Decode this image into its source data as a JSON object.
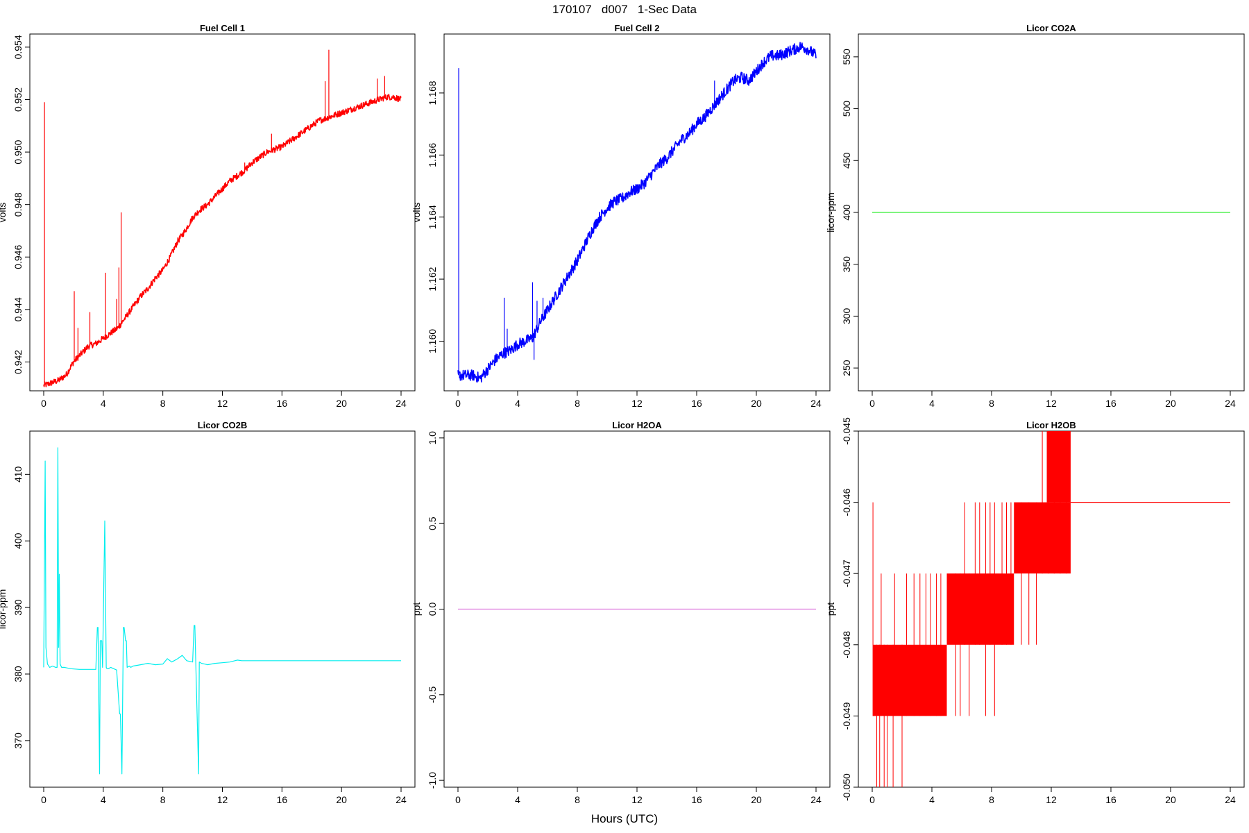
{
  "page_title": "170107   d007   1-Sec Data",
  "x_axis_label": "Hours (UTC)",
  "chart_data": [
    {
      "type": "line",
      "title": "Fuel Cell 1",
      "ylabel": "volts",
      "xlabel": "",
      "color": "#ff0000",
      "xlim": [
        0,
        24
      ],
      "ylim": [
        0.9409,
        0.9545
      ],
      "x_ticks": [
        "0",
        "4",
        "8",
        "12",
        "16",
        "20",
        "24"
      ],
      "y_ticks": [
        "0.942",
        "0.944",
        "0.946",
        "0.948",
        "0.950",
        "0.952",
        "0.954"
      ],
      "y_tick_values": [
        0.942,
        0.944,
        0.946,
        0.948,
        0.95,
        0.952,
        0.954
      ],
      "noise": 0.00012,
      "series": [
        {
          "x": [
            0,
            0.5,
            1.0,
            1.5,
            2.0,
            2.5,
            3.0,
            3.5,
            4.0,
            4.5,
            5.0,
            5.5,
            6.0,
            6.5,
            7.0,
            7.5,
            8.0,
            8.5,
            9.0,
            9.5,
            10.0,
            10.5,
            11.0,
            11.5,
            12.0,
            12.5,
            13.0,
            13.5,
            14.0,
            14.5,
            15.0,
            15.5,
            16.0,
            16.5,
            17.0,
            17.5,
            18.0,
            18.5,
            19.0,
            19.5,
            20.0,
            20.5,
            21.0,
            21.5,
            22.0,
            22.5,
            23.0,
            23.5,
            24.0
          ],
          "values": [
            0.9411,
            0.9412,
            0.9413,
            0.9415,
            0.942,
            0.9423,
            0.9426,
            0.9427,
            0.9429,
            0.9431,
            0.9433,
            0.9437,
            0.9441,
            0.9445,
            0.9448,
            0.9452,
            0.9455,
            0.946,
            0.9466,
            0.947,
            0.9475,
            0.9478,
            0.948,
            0.9483,
            0.9486,
            0.9489,
            0.9491,
            0.9493,
            0.9496,
            0.9498,
            0.95,
            0.9501,
            0.9502,
            0.9504,
            0.9506,
            0.9508,
            0.951,
            0.9512,
            0.9513,
            0.9514,
            0.9515,
            0.9516,
            0.9517,
            0.9518,
            0.9519,
            0.952,
            0.9521,
            0.9521,
            0.952
          ]
        }
      ],
      "spikes": [
        [
          0.05,
          0.9519
        ],
        [
          2.05,
          0.9447
        ],
        [
          2.3,
          0.9433
        ],
        [
          3.1,
          0.9439
        ],
        [
          4.15,
          0.9454
        ],
        [
          4.9,
          0.9444
        ],
        [
          5.05,
          0.9456
        ],
        [
          5.2,
          0.9477
        ],
        [
          13.5,
          0.9496
        ],
        [
          15.3,
          0.9507
        ],
        [
          19.15,
          0.9539
        ],
        [
          18.9,
          0.9527
        ],
        [
          22.4,
          0.9528
        ],
        [
          22.9,
          0.9529
        ]
      ]
    },
    {
      "type": "line",
      "title": "Fuel Cell 2",
      "ylabel": "volts",
      "xlabel": "",
      "color": "#0000ff",
      "xlim": [
        0,
        24
      ],
      "ylim": [
        1.1584,
        1.1699
      ],
      "x_ticks": [
        "0",
        "4",
        "8",
        "12",
        "16",
        "20",
        "24"
      ],
      "y_ticks": [
        "1.160",
        "1.162",
        "1.164",
        "1.166",
        "1.168"
      ],
      "y_tick_values": [
        1.16,
        1.162,
        1.164,
        1.166,
        1.168
      ],
      "noise": 0.00018,
      "series": [
        {
          "x": [
            0,
            0.5,
            1.0,
            1.5,
            2.0,
            2.5,
            3.0,
            3.5,
            4.0,
            4.5,
            5.0,
            5.5,
            6.0,
            6.5,
            7.0,
            7.5,
            8.0,
            8.5,
            9.0,
            9.5,
            10.0,
            10.5,
            11.0,
            11.5,
            12.0,
            12.5,
            13.0,
            13.5,
            14.0,
            14.5,
            15.0,
            15.5,
            16.0,
            16.5,
            17.0,
            17.5,
            18.0,
            18.5,
            19.0,
            19.5,
            20.0,
            20.5,
            21.0,
            21.5,
            22.0,
            22.5,
            23.0,
            23.5,
            24.0
          ],
          "values": [
            1.1589,
            1.1589,
            1.1589,
            1.1588,
            1.1591,
            1.1594,
            1.1596,
            1.1597,
            1.1599,
            1.16,
            1.1601,
            1.1606,
            1.161,
            1.1614,
            1.1618,
            1.1622,
            1.1626,
            1.1631,
            1.1636,
            1.164,
            1.1643,
            1.1645,
            1.1646,
            1.1648,
            1.1649,
            1.1651,
            1.1654,
            1.1657,
            1.1659,
            1.1662,
            1.1665,
            1.1667,
            1.167,
            1.1672,
            1.1675,
            1.1678,
            1.1681,
            1.1684,
            1.1685,
            1.1684,
            1.1687,
            1.169,
            1.1692,
            1.1692,
            1.1693,
            1.1694,
            1.1695,
            1.1694,
            1.1692
          ]
        }
      ],
      "spikes": [
        [
          0.05,
          1.1688
        ],
        [
          0.1,
          1.1588
        ],
        [
          3.1,
          1.1614
        ],
        [
          3.3,
          1.1604
        ],
        [
          5.0,
          1.1619
        ],
        [
          5.1,
          1.1594
        ],
        [
          5.3,
          1.1613
        ],
        [
          5.7,
          1.1614
        ],
        [
          17.2,
          1.1684
        ]
      ]
    },
    {
      "type": "line",
      "title": "Licor CO2A",
      "ylabel": "licor-ppm",
      "xlabel": "",
      "color": "#33ee33",
      "xlim": [
        0,
        24
      ],
      "ylim": [
        228,
        572
      ],
      "x_ticks": [
        "0",
        "4",
        "8",
        "12",
        "16",
        "20",
        "24"
      ],
      "y_ticks": [
        "250",
        "300",
        "350",
        "400",
        "450",
        "500",
        "550"
      ],
      "y_tick_values": [
        250,
        300,
        350,
        400,
        450,
        500,
        550
      ],
      "noise": 0,
      "series": [
        {
          "x": [
            0,
            24
          ],
          "values": [
            400,
            400
          ]
        }
      ],
      "spikes": []
    },
    {
      "type": "line",
      "title": "Licor CO2B",
      "ylabel": "licor-ppm",
      "xlabel": "",
      "color": "#00eeee",
      "xlim": [
        0,
        24
      ],
      "ylim": [
        363,
        416.5
      ],
      "x_ticks": [
        "0",
        "4",
        "8",
        "12",
        "16",
        "20",
        "24"
      ],
      "y_ticks": [
        "370",
        "380",
        "390",
        "400",
        "410"
      ],
      "y_tick_values": [
        370,
        380,
        390,
        400,
        410
      ],
      "noise": 0,
      "series": [
        {
          "x": [
            0,
            0.1,
            0.15,
            0.25,
            0.4,
            0.6,
            0.8,
            0.9,
            0.95,
            1.0,
            1.05,
            1.1,
            1.2,
            1.4,
            1.8,
            2.4,
            3.0,
            3.5,
            3.6,
            3.65,
            3.75,
            3.8,
            3.9,
            3.95,
            4.1,
            4.2,
            4.25,
            4.35,
            4.5,
            4.9,
            5.1,
            5.15,
            5.25,
            5.35,
            5.4,
            5.5,
            5.55,
            5.6,
            5.75,
            5.85,
            6.0,
            6.5,
            7.0,
            7.5,
            8.0,
            8.3,
            8.6,
            9.0,
            9.3,
            9.6,
            10.0,
            10.1,
            10.15,
            10.4,
            10.45,
            10.6,
            11.0,
            11.5,
            12.0,
            12.5,
            13.0,
            13.3,
            24.0
          ],
          "values": [
            381,
            412,
            384,
            381.5,
            381,
            381.2,
            381,
            381,
            414,
            384,
            395,
            381.5,
            381,
            381,
            380.8,
            380.7,
            380.7,
            380.7,
            387,
            387,
            365,
            385,
            385,
            381,
            403,
            381,
            380.8,
            380.8,
            381,
            380.6,
            374,
            374,
            365,
            387,
            387,
            385,
            385,
            381,
            381.2,
            381,
            381.2,
            381.4,
            381.6,
            381.4,
            381.5,
            382.3,
            381.8,
            382.3,
            382.8,
            382,
            381.8,
            387.3,
            387.3,
            365,
            381.8,
            381.6,
            381.4,
            381.6,
            381.7,
            381.8,
            382.1,
            382,
            382
          ]
        }
      ],
      "spikes": []
    },
    {
      "type": "line",
      "title": "Licor H2OA",
      "ylabel": "ppt",
      "xlabel": "",
      "color": "#dd77dd",
      "xlim": [
        0,
        24
      ],
      "ylim": [
        -1.04,
        1.04
      ],
      "x_ticks": [
        "0",
        "4",
        "8",
        "12",
        "16",
        "20",
        "24"
      ],
      "y_ticks": [
        "-1.0",
        "-0.5",
        "0.0",
        "0.5",
        "1.0"
      ],
      "y_tick_values": [
        -1.0,
        -0.5,
        0.0,
        0.5,
        1.0
      ],
      "noise": 0,
      "series": [
        {
          "x": [
            0,
            24
          ],
          "values": [
            0,
            0
          ]
        }
      ],
      "spikes": []
    },
    {
      "type": "line",
      "title": "Licor H2OB",
      "ylabel": "ppt",
      "xlabel": "",
      "color": "#ff0000",
      "xlim": [
        0,
        24
      ],
      "ylim": [
        -0.05,
        -0.045
      ],
      "x_ticks": [
        "0",
        "4",
        "8",
        "12",
        "16",
        "20",
        "24"
      ],
      "y_ticks": [
        "-0.050",
        "-0.049",
        "-0.048",
        "-0.047",
        "-0.046",
        "-0.045"
      ],
      "y_tick_values": [
        -0.05,
        -0.049,
        -0.048,
        -0.047,
        -0.046,
        -0.045
      ],
      "noise": 0,
      "series": [
        {
          "x": [
            13.3,
            24
          ],
          "values": [
            -0.046,
            -0.046
          ]
        }
      ],
      "bands": [
        {
          "x0": 0.05,
          "x1": 5.0,
          "low": -0.049,
          "high": -0.048
        },
        {
          "x0": 5.0,
          "x1": 9.5,
          "low": -0.048,
          "high": -0.047
        },
        {
          "x0": 9.5,
          "x1": 13.3,
          "low": -0.047,
          "high": -0.046
        },
        {
          "x0": 11.7,
          "x1": 13.3,
          "low": -0.046,
          "high": -0.045
        }
      ],
      "spike_lines": [
        [
          0.05,
          -0.046,
          -0.049
        ],
        [
          0.3,
          -0.05,
          -0.048
        ],
        [
          0.5,
          -0.05,
          -0.048
        ],
        [
          0.6,
          -0.047,
          -0.049
        ],
        [
          0.8,
          -0.05,
          -0.048
        ],
        [
          1.0,
          -0.05,
          -0.048
        ],
        [
          1.4,
          -0.05,
          -0.048
        ],
        [
          2.0,
          -0.05,
          -0.048
        ],
        [
          1.5,
          -0.047,
          -0.049
        ],
        [
          2.3,
          -0.047,
          -0.049
        ],
        [
          2.8,
          -0.047,
          -0.049
        ],
        [
          3.2,
          -0.047,
          -0.049
        ],
        [
          3.6,
          -0.047,
          -0.049
        ],
        [
          3.9,
          -0.047,
          -0.049
        ],
        [
          4.3,
          -0.047,
          -0.049
        ],
        [
          4.6,
          -0.047,
          -0.049
        ],
        [
          5.6,
          -0.047,
          -0.049
        ],
        [
          5.9,
          -0.047,
          -0.049
        ],
        [
          6.2,
          -0.046,
          -0.048
        ],
        [
          6.5,
          -0.047,
          -0.049
        ],
        [
          6.9,
          -0.046,
          -0.048
        ],
        [
          7.2,
          -0.046,
          -0.048
        ],
        [
          7.6,
          -0.046,
          -0.049
        ],
        [
          7.9,
          -0.046,
          -0.048
        ],
        [
          8.2,
          -0.046,
          -0.049
        ],
        [
          8.7,
          -0.046,
          -0.048
        ],
        [
          9.0,
          -0.046,
          -0.048
        ],
        [
          9.3,
          -0.046,
          -0.048
        ],
        [
          10.0,
          -0.046,
          -0.048
        ],
        [
          10.5,
          -0.046,
          -0.048
        ],
        [
          11.0,
          -0.046,
          -0.048
        ],
        [
          11.4,
          -0.045,
          -0.047
        ],
        [
          11.8,
          -0.045,
          -0.047
        ],
        [
          12.2,
          -0.045,
          -0.047
        ],
        [
          12.6,
          -0.045,
          -0.047
        ],
        [
          13.0,
          -0.045,
          -0.047
        ]
      ],
      "spikes": []
    }
  ]
}
